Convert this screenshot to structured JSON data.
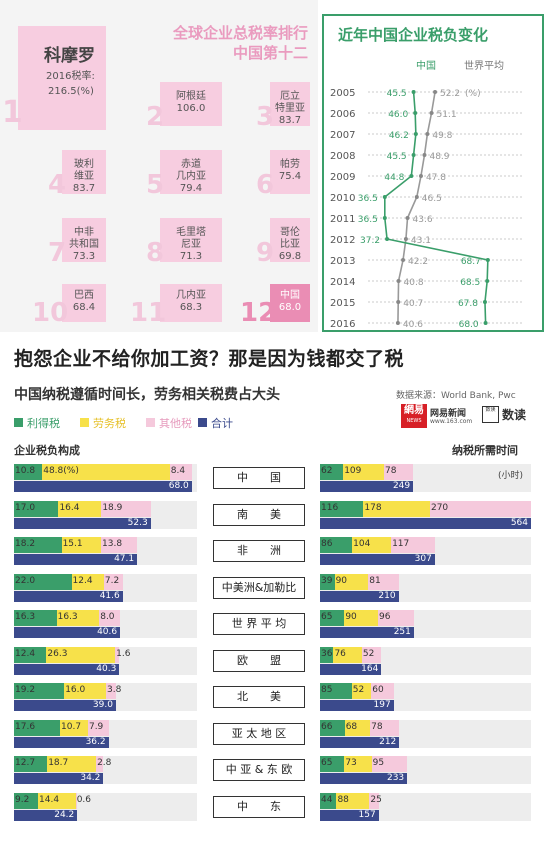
{
  "ranking": {
    "title_line1": "全球企业总税率排行",
    "title_line2": "中国第十二",
    "first": {
      "rank": "1",
      "name": "科摩罗",
      "label": "2016税率:",
      "value": "216.5(%)"
    },
    "items": [
      {
        "rank": "2",
        "name": "阿根廷",
        "value": "106.0"
      },
      {
        "rank": "3",
        "name": "厄立\n特里亚",
        "value": "83.7"
      },
      {
        "rank": "4",
        "name": "玻利\n维亚",
        "value": "83.7"
      },
      {
        "rank": "5",
        "name": "赤道\n几内亚",
        "value": "79.4"
      },
      {
        "rank": "6",
        "name": "帕劳",
        "value": "75.4"
      },
      {
        "rank": "7",
        "name": "中非\n共和国",
        "value": "73.3"
      },
      {
        "rank": "8",
        "name": "毛里塔\n尼亚",
        "value": "71.3"
      },
      {
        "rank": "9",
        "name": "哥伦\n比亚",
        "value": "69.8"
      },
      {
        "rank": "10",
        "name": "巴西",
        "value": "68.4"
      },
      {
        "rank": "11",
        "name": "几内亚",
        "value": "68.3"
      },
      {
        "rank": "12",
        "name": "中国",
        "value": "68.0"
      }
    ]
  },
  "trend": {
    "title": "近年中国企业税负变化",
    "legend_china": "中国",
    "legend_world": "世界平均",
    "unit": "(%)",
    "years": [
      "2005",
      "2006",
      "2007",
      "2008",
      "2009",
      "2010",
      "2011",
      "2012",
      "2013",
      "2014",
      "2015",
      "2016"
    ],
    "china": [
      "45.5",
      "46.0",
      "46.2",
      "45.5",
      "44.8",
      "36.5",
      "36.5",
      "37.2",
      "68.7",
      "68.5",
      "67.8",
      "68.0"
    ],
    "world": [
      "52.2",
      "51.1",
      "49.8",
      "48.9",
      "47.8",
      "46.5",
      "43.6",
      "43.1",
      "42.2",
      "40.8",
      "40.7",
      "40.6"
    ]
  },
  "headline": "抱怨企业不给你加工资？那是因为钱都交了税",
  "subhead": "中国纳税遵循时间长，劳务相关税费占大头",
  "source": "数据来源：World Bank, Pwc",
  "brand": {
    "name": "网易新闻",
    "url": "www.163.com",
    "logo_text": "網易",
    "logo_sub": "NEWS",
    "badge": "数读",
    "badge_icon": "数读"
  },
  "legend": [
    {
      "label": "利得税",
      "color": "#3a9e6a"
    },
    {
      "label": "劳务税",
      "color": "#f7e14a"
    },
    {
      "label": "其他税",
      "color": "#f5c9dc"
    },
    {
      "label": "合计",
      "color": "#3b4a8c"
    }
  ],
  "left_title": "企业税负构成",
  "right_title": "纳税所需时间",
  "right_unit": "(小时)",
  "left_first_unit": "(%)",
  "chart_data": [
    {
      "type": "bar",
      "title": "企业税负构成",
      "categories": [
        "中国",
        "南美",
        "非洲",
        "中美洲&加勒比",
        "世界平均",
        "欧盟",
        "北美",
        "亚太地区",
        "中亚&东欧",
        "中东"
      ],
      "series": [
        {
          "name": "利得税",
          "values": [
            10.8,
            17.0,
            18.2,
            22.0,
            16.3,
            12.4,
            19.2,
            17.6,
            12.7,
            9.2
          ]
        },
        {
          "name": "劳务税",
          "values": [
            48.8,
            16.4,
            15.1,
            12.4,
            16.3,
            26.3,
            16.0,
            10.7,
            18.7,
            14.4
          ]
        },
        {
          "name": "其他税",
          "values": [
            8.4,
            18.9,
            13.8,
            7.2,
            8.0,
            1.6,
            3.8,
            7.9,
            2.8,
            0.6
          ]
        },
        {
          "name": "合计",
          "values": [
            68.0,
            52.3,
            47.1,
            41.6,
            40.6,
            40.3,
            39.0,
            36.2,
            34.2,
            24.2
          ]
        }
      ]
    },
    {
      "type": "bar",
      "title": "纳税所需时间",
      "categories": [
        "中国",
        "南美",
        "非洲",
        "中美洲&加勒比",
        "世界平均",
        "欧盟",
        "北美",
        "亚太地区",
        "中亚&东欧",
        "中东"
      ],
      "series": [
        {
          "name": "利得税",
          "values": [
            62,
            116,
            86,
            39,
            65,
            36,
            85,
            66,
            65,
            44
          ]
        },
        {
          "name": "劳务税",
          "values": [
            109,
            178,
            104,
            90,
            90,
            76,
            52,
            68,
            73,
            88
          ]
        },
        {
          "name": "其他税",
          "values": [
            78,
            270,
            117,
            81,
            96,
            52,
            60,
            78,
            95,
            25
          ]
        },
        {
          "name": "合计",
          "values": [
            249,
            564,
            307,
            210,
            251,
            164,
            197,
            212,
            233,
            157
          ]
        }
      ]
    },
    {
      "type": "line",
      "title": "近年中国企业税负变化",
      "x": [
        2005,
        2006,
        2007,
        2008,
        2009,
        2010,
        2011,
        2012,
        2013,
        2014,
        2015,
        2016
      ],
      "series": [
        {
          "name": "中国",
          "values": [
            45.5,
            46.0,
            46.2,
            45.5,
            44.8,
            36.5,
            36.5,
            37.2,
            68.7,
            68.5,
            67.8,
            68.0
          ]
        },
        {
          "name": "世界平均",
          "values": [
            52.2,
            51.1,
            49.8,
            48.9,
            47.8,
            46.5,
            43.6,
            43.1,
            42.2,
            40.8,
            40.7,
            40.6
          ]
        }
      ]
    }
  ],
  "category_labels": [
    "中　　国",
    "南　　美",
    "非　　洲",
    "中美洲&加勒比",
    "世 界 平 均",
    "欧　　盟",
    "北　　美",
    "亚 太 地 区",
    "中 亚 & 东 欧",
    "中　　东"
  ]
}
